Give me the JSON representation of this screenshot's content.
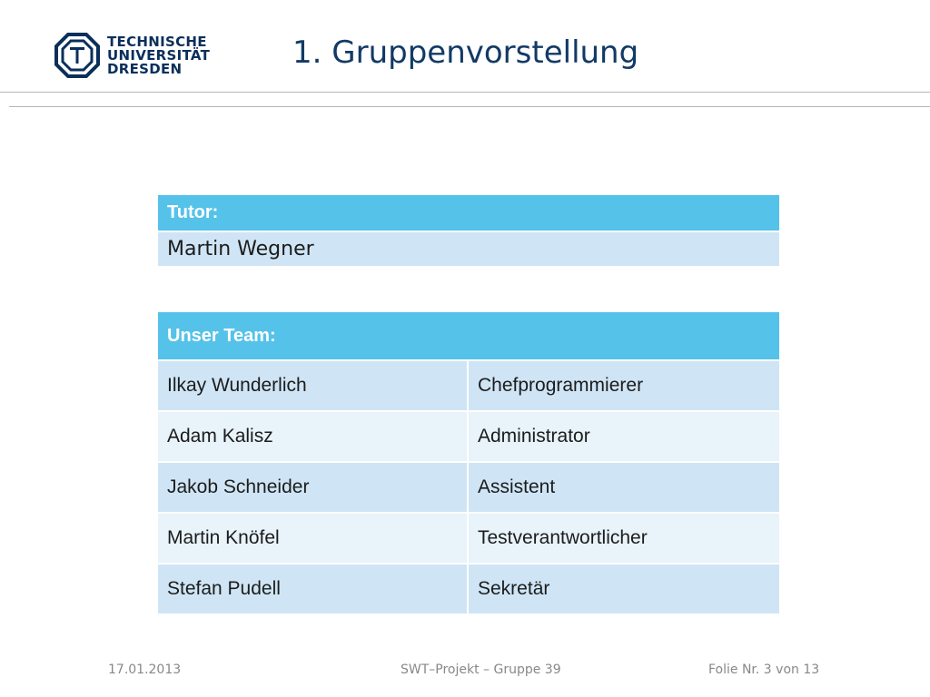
{
  "header": {
    "logo_lines": [
      "TECHNISCHE",
      "UNIVERSITÄT",
      "DRESDEN"
    ],
    "title": "1. Gruppenvorstellung"
  },
  "tutor": {
    "header": "Tutor:",
    "name": "Martin Wegner"
  },
  "team": {
    "header": "Unser Team:",
    "members": [
      {
        "name": "Ilkay Wunderlich",
        "role": "Chefprogrammierer"
      },
      {
        "name": "Adam Kalisz",
        "role": "Administrator"
      },
      {
        "name": "Jakob Schneider",
        "role": "Assistent"
      },
      {
        "name": "Martin Knöfel",
        "role": "Testverantwortlicher"
      },
      {
        "name": "Stefan Pudell",
        "role": "Sekretär"
      }
    ]
  },
  "footer": {
    "date": "17.01.2013",
    "center": "SWT–Projekt – Gruppe 39",
    "page": "Folie Nr. 3 von 13"
  },
  "colors": {
    "header_bg": "#55c2e9",
    "row_dark": "#cfe5f5",
    "row_light": "#e8f3fa",
    "title": "#123a66",
    "logo": "#0a2f5b"
  }
}
